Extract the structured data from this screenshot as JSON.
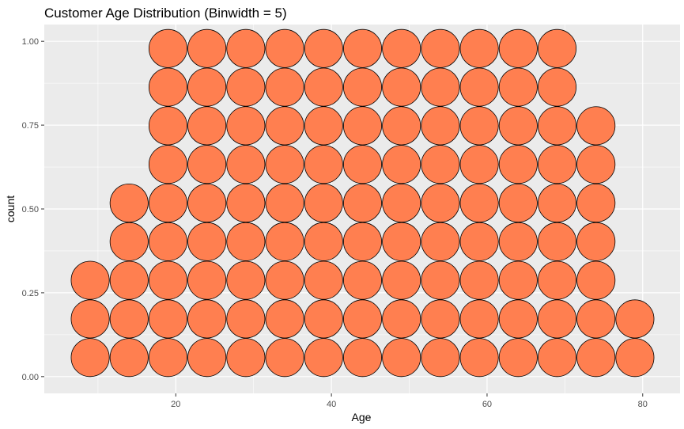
{
  "chart_data": {
    "type": "dotplot",
    "title": "Customer Age Distribution (Binwidth = 5)",
    "xlabel": "Age",
    "ylabel": "count",
    "xlim": [
      3.1,
      84.8
    ],
    "ylim": [
      -0.05,
      1.05
    ],
    "x_ticks": [
      20,
      40,
      60,
      80
    ],
    "y_ticks": [
      0.0,
      0.25,
      0.5,
      0.75,
      1.0
    ],
    "x_tick_labels": [
      "20",
      "40",
      "60",
      "80"
    ],
    "y_tick_labels": [
      "0.00",
      "0.25",
      "0.50",
      "0.75",
      "1.00"
    ],
    "binwidth": 5,
    "dot_fill": "#FF7F50",
    "dot_stroke": "#000000",
    "panel_background": "#EBEBEB",
    "grid": true,
    "bins": [
      {
        "center": 9,
        "count": 3
      },
      {
        "center": 14,
        "count": 5
      },
      {
        "center": 19,
        "count": 9
      },
      {
        "center": 24,
        "count": 9
      },
      {
        "center": 29,
        "count": 9
      },
      {
        "center": 34,
        "count": 9
      },
      {
        "center": 39,
        "count": 9
      },
      {
        "center": 44,
        "count": 9
      },
      {
        "center": 49,
        "count": 9
      },
      {
        "center": 54,
        "count": 9
      },
      {
        "center": 59,
        "count": 9
      },
      {
        "center": 64,
        "count": 9
      },
      {
        "center": 69,
        "count": 9
      },
      {
        "center": 74,
        "count": 7
      },
      {
        "center": 79,
        "count": 2
      }
    ]
  }
}
